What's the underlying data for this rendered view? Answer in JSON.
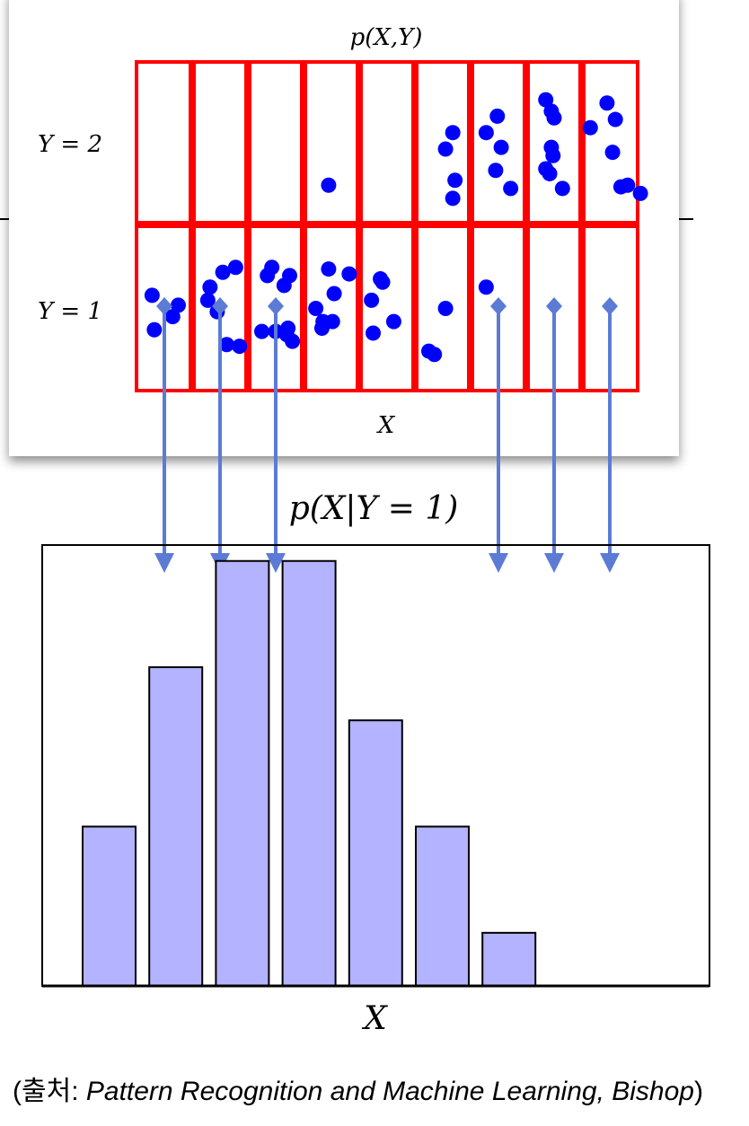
{
  "chart_data": [
    {
      "type": "scatter",
      "title": "p(X,Y)",
      "xlabel": "X",
      "row_labels": [
        "Y = 2",
        "Y = 1"
      ],
      "grid": {
        "columns": 9,
        "rows": 2
      },
      "colors": {
        "grid": "#ff0000",
        "points": "#0000ff"
      },
      "points_y2": [
        [
          3.45,
          1.25
        ],
        [
          5.55,
          1.47
        ],
        [
          5.68,
          1.57
        ],
        [
          5.72,
          1.28
        ],
        [
          5.68,
          1.17
        ],
        [
          6.45,
          1.34
        ],
        [
          6.48,
          1.67
        ],
        [
          6.55,
          1.48
        ],
        [
          6.72,
          1.23
        ],
        [
          7.35,
          1.35
        ],
        [
          6.28,
          1.57
        ],
        [
          7.45,
          1.48
        ],
        [
          7.42,
          1.32
        ],
        [
          7.45,
          1.7
        ],
        [
          7.5,
          1.66
        ],
        [
          7.65,
          1.23
        ],
        [
          7.35,
          1.77
        ],
        [
          7.48,
          1.43
        ],
        [
          8.15,
          1.6
        ],
        [
          8.55,
          1.45
        ],
        [
          8.6,
          1.65
        ],
        [
          8.45,
          1.75
        ],
        [
          8.7,
          1.24
        ],
        [
          8.82,
          1.25
        ],
        [
          9.05,
          1.2
        ]
      ],
      "points_y1": [
        [
          0.32,
          0.37
        ],
        [
          0.75,
          0.52
        ],
        [
          0.28,
          0.58
        ],
        [
          1.28,
          0.55
        ],
        [
          1.55,
          0.72
        ],
        [
          1.78,
          0.75
        ],
        [
          1.32,
          0.63
        ],
        [
          1.45,
          0.48
        ],
        [
          1.62,
          0.28
        ],
        [
          1.85,
          0.27
        ],
        [
          2.25,
          0.36
        ],
        [
          2.35,
          0.7
        ],
        [
          2.43,
          0.75
        ],
        [
          2.5,
          0.36
        ],
        [
          2.72,
          0.38
        ],
        [
          2.75,
          0.7
        ],
        [
          2.8,
          0.3
        ],
        [
          2.65,
          0.64
        ],
        [
          2.7,
          0.34
        ],
        [
          3.22,
          0.5
        ],
        [
          3.35,
          0.42
        ],
        [
          3.45,
          0.74
        ],
        [
          3.55,
          0.59
        ],
        [
          3.52,
          0.42
        ],
        [
          3.33,
          0.38
        ],
        [
          3.82,
          0.71
        ],
        [
          4.25,
          0.35
        ],
        [
          4.38,
          0.68
        ],
        [
          4.22,
          0.55
        ],
        [
          4.62,
          0.42
        ],
        [
          4.42,
          0.66
        ],
        [
          5.25,
          0.24
        ],
        [
          5.35,
          0.22
        ],
        [
          5.55,
          0.5
        ],
        [
          6.28,
          0.63
        ],
        [
          0.65,
          0.45
        ]
      ],
      "mapped_columns": [
        0.5,
        1.5,
        2.5,
        6.5,
        7.5,
        8.5
      ]
    },
    {
      "type": "bar",
      "title": "p(X|Y = 1)",
      "xlabel": "X",
      "values": [
        3,
        6,
        8,
        8,
        5,
        3,
        1,
        0,
        0
      ],
      "ylim": [
        0,
        8.3
      ],
      "colors": {
        "bar": "#b3b3ff",
        "bar_edge": "#000000",
        "arrow": "#5b7bd5"
      }
    }
  ],
  "caption": {
    "prefix": "(출처: ",
    "source": "Pattern Recognition and Machine Learning, Bishop",
    "suffix": ")"
  }
}
